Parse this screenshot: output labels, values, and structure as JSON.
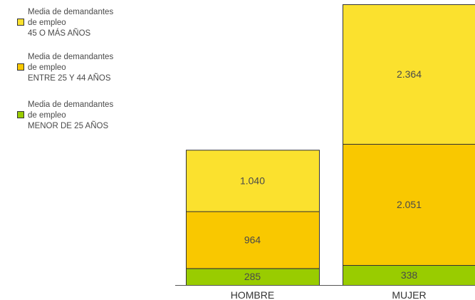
{
  "chart_data": {
    "type": "bar",
    "stacked": true,
    "categories": [
      "HOMBRE",
      "MUJER"
    ],
    "series": [
      {
        "name_lines": [
          "Media de demandantes",
          "de empleo",
          "MENOR DE 25 AÑOS"
        ],
        "values": [
          285,
          338
        ],
        "value_labels": [
          "285",
          "338"
        ],
        "color": "#99cc00"
      },
      {
        "name_lines": [
          "Media de demandantes",
          "de empleo",
          "ENTRE 25 Y 44 AÑOS"
        ],
        "values": [
          964,
          2051
        ],
        "value_labels": [
          "964",
          "2.051"
        ],
        "color": "#f9c800"
      },
      {
        "name_lines": [
          "Media de demandantes",
          "de empleo",
          "45 O MÁS AÑOS"
        ],
        "values": [
          1040,
          2364
        ],
        "value_labels": [
          "1.040",
          "2.364"
        ],
        "color": "#fbe12e"
      }
    ],
    "legend_position": "top-left",
    "legend_order": [
      2,
      1,
      0
    ],
    "grid": false,
    "ylim": [
      0,
      4753
    ]
  }
}
